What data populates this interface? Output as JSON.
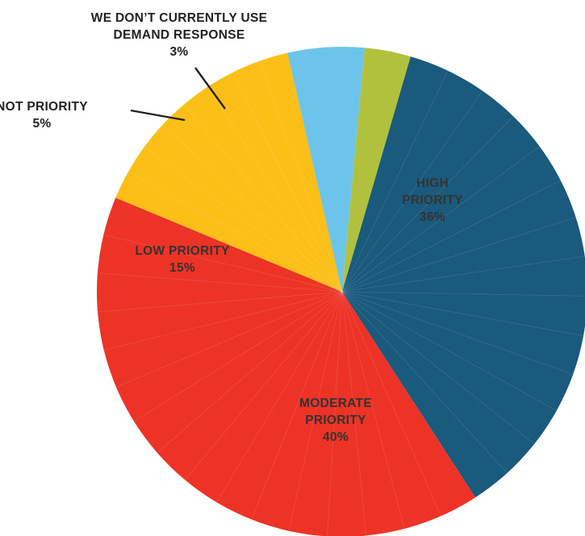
{
  "chart_data": {
    "type": "pie",
    "slices": [
      {
        "label_lines": [
          "HIGH",
          "PRIORITY"
        ],
        "value_label": "36%",
        "value": 36,
        "color": "#1a5a7c",
        "text_color": "#333333"
      },
      {
        "label_lines": [
          "MODERATE",
          "PRIORITY"
        ],
        "value_label": "40%",
        "value": 40,
        "color": "#ed3326",
        "text_color": "#333333"
      },
      {
        "label_lines": [
          "LOW PRIORITY"
        ],
        "value_label": "15%",
        "value": 15,
        "color": "#fbbf18",
        "text_color": "#333333"
      },
      {
        "label_lines": [
          "NOT PRIORITY"
        ],
        "value_label": "5%",
        "value": 5,
        "color": "#6cc4ea",
        "text_color": "#222222"
      },
      {
        "label_lines": [
          "WE DON’T CURRENTLY USE",
          "DEMAND RESPONSE"
        ],
        "value_label": "3%",
        "value": 3,
        "color": "#b1c13d",
        "text_color": "#222222"
      }
    ]
  }
}
